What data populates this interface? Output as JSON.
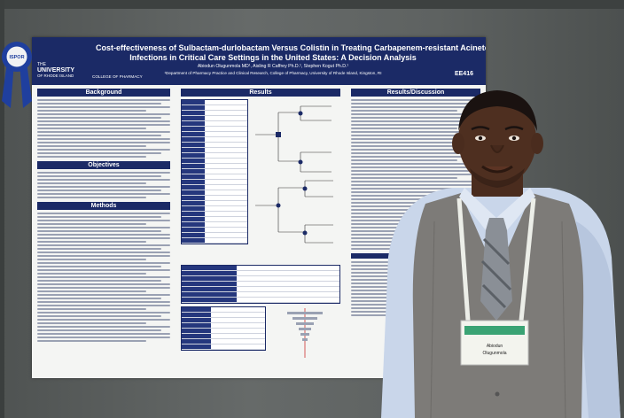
{
  "poster": {
    "title_line1": "Cost-effectiveness of Sulbactam-durlobactam Versus Colistin in Treating Carbapenem-resistant Acinetobacter baumannii",
    "title_line2": "Infections in Critical Care Settings in the United States: A Decision Analysis",
    "authors": "Abiodun Olugunmola MD¹, Aisling R Caffrey Ph.D.¹, Stephen Kogut Ph.D.¹",
    "affiliation": "¹Department of Pharmacy Practice and Clinical Research, College of Pharmacy, University of Rhode Island, Kingston, RI",
    "poster_id": "EE416",
    "logo_line1": "THE",
    "logo_line2": "UNIVERSITY",
    "logo_line3": "OF RHODE ISLAND",
    "college": "COLLEGE OF PHARMACY",
    "sections": {
      "background": "Background",
      "objectives": "Objectives",
      "methods": "Methods",
      "results": "Results",
      "discussion": "Results/Discussion"
    }
  },
  "ribbon": {
    "text": "ISPOR"
  },
  "badge": {
    "name": "Abiodun",
    "surname": "Olugunmola"
  },
  "colors": {
    "poster_header": "#1b2a66",
    "ribbon": "#1f3f9e",
    "vest": "#7d7b78",
    "shirt": "#c9d6ea",
    "lanyard": "#eceee8"
  }
}
